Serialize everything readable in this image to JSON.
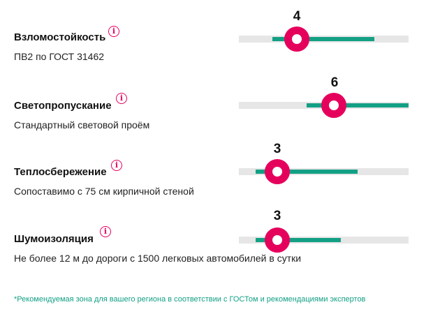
{
  "criteria": [
    {
      "title": "Взломостойкость",
      "description": "ПВ2 по ГОСТ 31462",
      "value": "4",
      "info_icon": "info-icon"
    },
    {
      "title": "Светопропускание",
      "description": "Стандартный световой проём",
      "value": "6",
      "info_icon": "info-icon"
    },
    {
      "title": "Теплосбережение",
      "description": "Сопоставимо с 75 см кирпичной стеной",
      "value": "3",
      "info_icon": "info-icon"
    },
    {
      "title": "Шумоизоляция",
      "description": "Не более 12 м до дороги с 1500 легковых автомобилей в сутки",
      "value": "3",
      "info_icon": "info-icon"
    }
  ],
  "footnote": "*Рекомендуемая зона для вашего региона в соответствии с ГОСТом и рекомендациями экспертов",
  "colors": {
    "accent": "#e5005c",
    "recommended_zone": "#13a085",
    "track": "#e6e6e6"
  }
}
